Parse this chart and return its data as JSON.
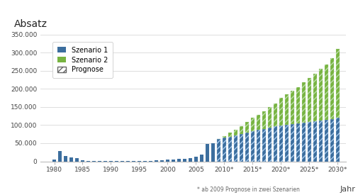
{
  "title": "Absatz",
  "xlabel": "Jahr",
  "ylim": [
    0,
    350000
  ],
  "yticks": [
    0,
    50000,
    100000,
    150000,
    200000,
    250000,
    300000,
    350000
  ],
  "ytick_labels": [
    "0",
    "50.000",
    "100.000",
    "150.000",
    "200.000",
    "250.000",
    "300.000",
    "350.000"
  ],
  "background_color": "#ffffff",
  "footnote": "* ab 2009 Prognose in zwei Szenarien",
  "years_historical": [
    1980,
    1981,
    1982,
    1983,
    1984,
    1985,
    1986,
    1987,
    1988,
    1989,
    1990,
    1991,
    1992,
    1993,
    1994,
    1995,
    1996,
    1997,
    1998,
    1999,
    2000,
    2001,
    2002,
    2003,
    2004,
    2005,
    2006,
    2007,
    2008
  ],
  "values_historical": [
    5000,
    28000,
    15000,
    10000,
    8000,
    3000,
    2000,
    1500,
    1500,
    2000,
    500,
    500,
    400,
    200,
    200,
    500,
    800,
    1500,
    2500,
    4000,
    4500,
    5500,
    6500,
    7500,
    9500,
    12000,
    19000,
    48000,
    50000
  ],
  "years_forecast": [
    2009,
    2010,
    2011,
    2012,
    2013,
    2014,
    2015,
    2016,
    2017,
    2018,
    2019,
    2020,
    2021,
    2022,
    2023,
    2024,
    2025,
    2026,
    2027,
    2028,
    2029,
    2030
  ],
  "values_scenario1": [
    62000,
    65000,
    68000,
    72000,
    76000,
    80000,
    84000,
    87000,
    90000,
    93000,
    96000,
    99000,
    101000,
    103000,
    105000,
    107000,
    109000,
    111000,
    113000,
    115000,
    117000,
    120000
  ],
  "values_scenario2_total": [
    62000,
    70000,
    80000,
    88000,
    97000,
    108000,
    120000,
    128000,
    138000,
    150000,
    160000,
    175000,
    185000,
    195000,
    205000,
    218000,
    230000,
    242000,
    255000,
    268000,
    285000,
    310000
  ],
  "color_blue": "#3c6e9e",
  "color_green": "#78b441",
  "bar_width": 0.6,
  "xtick_positions": [
    1980,
    1985,
    1990,
    1995,
    2000,
    2005,
    2010,
    2015,
    2020,
    2025,
    2030
  ],
  "xtick_labels": [
    "1980",
    "1985",
    "1990",
    "1995",
    "2000",
    "2005",
    "2010*",
    "2015*",
    "2020*",
    "2025*",
    "2030*"
  ],
  "legend_labels": [
    "Szenario 1",
    "Szenario 2",
    "Prognose"
  ]
}
